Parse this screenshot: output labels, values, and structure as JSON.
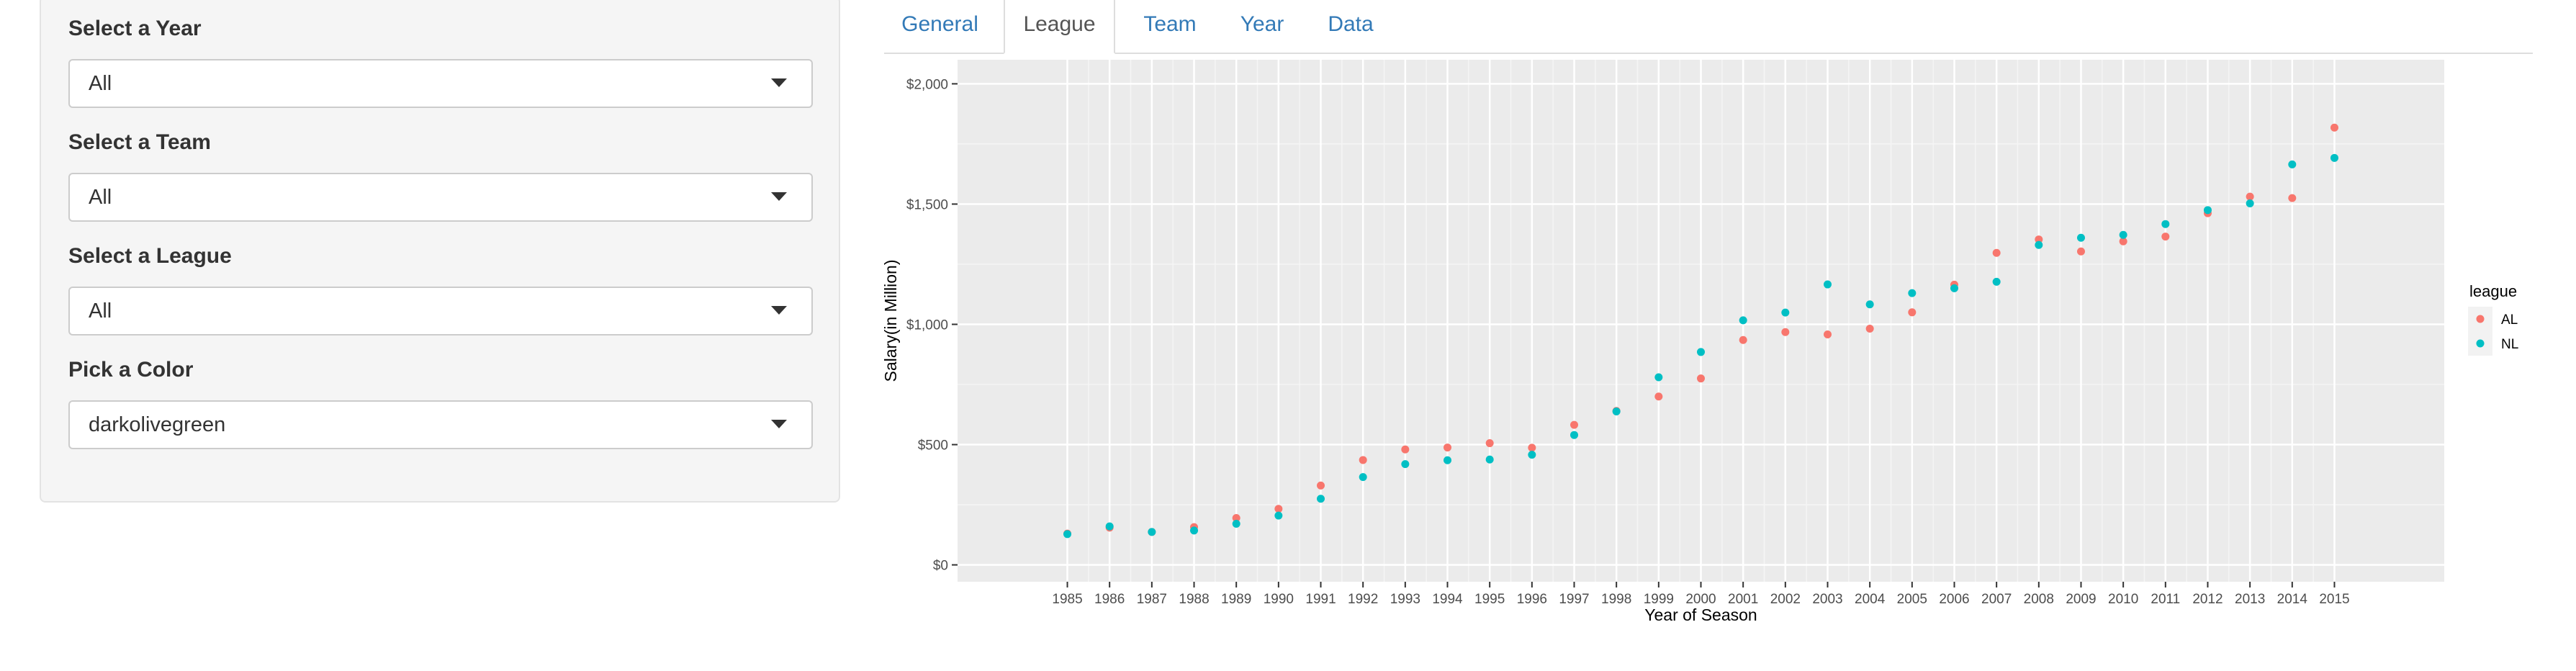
{
  "sidebar": {
    "fields": [
      {
        "label": "Select a Year",
        "value": "All"
      },
      {
        "label": "Select a Team",
        "value": "All"
      },
      {
        "label": "Select a League",
        "value": "All"
      },
      {
        "label": "Pick a Color",
        "value": "darkolivegreen"
      }
    ]
  },
  "tabs": [
    {
      "label": "General",
      "active": false
    },
    {
      "label": "League",
      "active": true
    },
    {
      "label": "Team",
      "active": false
    },
    {
      "label": "Year",
      "active": false
    },
    {
      "label": "Data",
      "active": false
    }
  ],
  "chart_data": {
    "type": "scatter",
    "xlabel": "Year of Season",
    "ylabel": "Salary(in Million)",
    "x": [
      1985,
      1986,
      1987,
      1988,
      1989,
      1990,
      1991,
      1992,
      1993,
      1994,
      1995,
      1996,
      1997,
      1998,
      1999,
      2000,
      2001,
      2002,
      2003,
      2004,
      2005,
      2006,
      2007,
      2008,
      2009,
      2010,
      2011,
      2012,
      2013,
      2014,
      2015
    ],
    "x_ticks": [
      "1985",
      "1986",
      "1987",
      "1988",
      "1989",
      "1990",
      "1991",
      "1992",
      "1993",
      "1994",
      "1995",
      "1996",
      "1997",
      "1998",
      "1999",
      "2000",
      "2001",
      "2002",
      "2003",
      "2004",
      "2005",
      "2006",
      "2007",
      "2008",
      "2009",
      "2010",
      "2011",
      "2012",
      "2013",
      "2014",
      "2015"
    ],
    "y_ticks": [
      0,
      500,
      1000,
      1500,
      2000
    ],
    "y_tick_labels": [
      "$0",
      "$500",
      "$1,000",
      "$1,500",
      "$2,000"
    ],
    "ylim": [
      -70,
      2100
    ],
    "xlim": [
      1982.4,
      2017.6
    ],
    "grid": true,
    "legend_title": "league",
    "legend_position": "right",
    "series": [
      {
        "name": "AL",
        "color": "#F8766D",
        "values": [
          130,
          155,
          137,
          157,
          195,
          233,
          330,
          436,
          480,
          488,
          506,
          487,
          582,
          640,
          700,
          775,
          935,
          968,
          958,
          982,
          1050,
          1165,
          1297,
          1353,
          1303,
          1345,
          1365,
          1462,
          1531,
          1525,
          1818
        ]
      },
      {
        "name": "NL",
        "color": "#00BFC4",
        "values": [
          128,
          160,
          137,
          143,
          171,
          205,
          275,
          365,
          419,
          435,
          438,
          458,
          540,
          638,
          780,
          885,
          1017,
          1049,
          1166,
          1083,
          1130,
          1150,
          1177,
          1330,
          1360,
          1372,
          1417,
          1475,
          1503,
          1665,
          1692
        ]
      }
    ]
  }
}
